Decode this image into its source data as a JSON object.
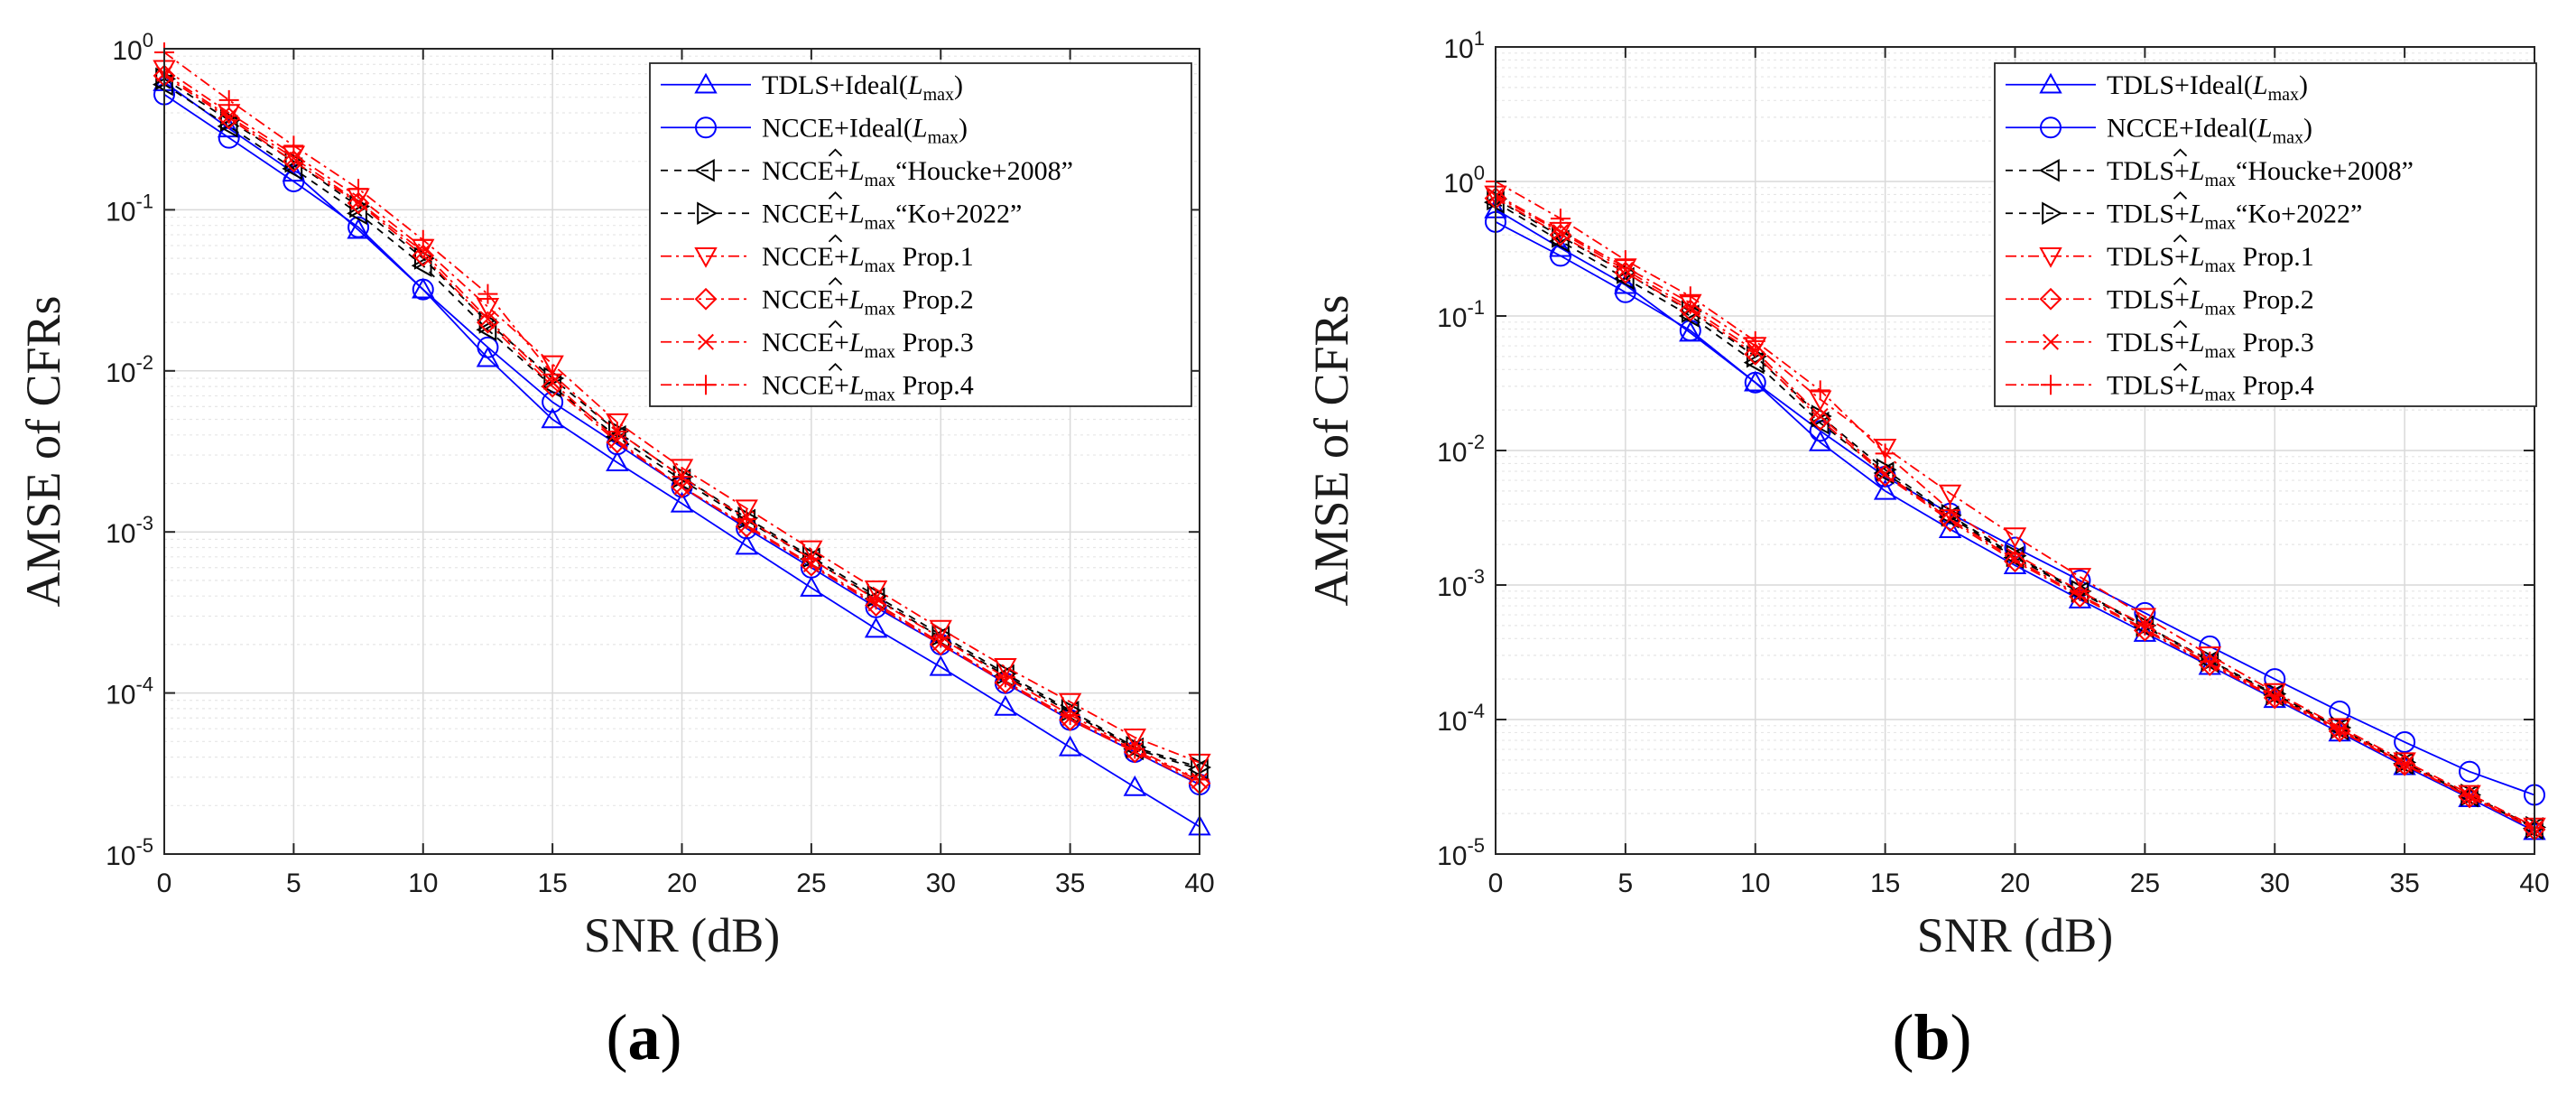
{
  "chart_data": [
    {
      "type": "line",
      "panel_label": "a",
      "title": "",
      "xlabel": "SNR (dB)",
      "ylabel": "AMSE of CFRs",
      "yscale": "log",
      "xlim": [
        0,
        40
      ],
      "ylim": [
        1e-05,
        1
      ],
      "grid": true,
      "minor_grid": true,
      "legend_position": "top-right",
      "x_ticks": [
        0,
        5,
        10,
        15,
        20,
        25,
        30,
        35,
        40
      ],
      "y_ticks": [
        0,
        -1,
        -2,
        -3,
        -4,
        -5
      ],
      "y_tick_labels": [
        "10",
        "10",
        "10",
        "10",
        "10",
        "10"
      ],
      "y_tick_exponents": [
        "0",
        "-1",
        "-2",
        "-3",
        "-4",
        "-5"
      ],
      "x": [
        0,
        2.5,
        5,
        7.5,
        10,
        12.5,
        15,
        17.5,
        20,
        22.5,
        25,
        27.5,
        30,
        32.5,
        35,
        37.5,
        40
      ],
      "series": [
        {
          "name_prefix": "TDLS+Ideal(",
          "name_math": "L",
          "name_sub": "max",
          "name_suffix": ")",
          "hat": false,
          "color": "#0000ff",
          "dash": "solid",
          "marker": "triangle-up",
          "values": [
            0.62,
            0.32,
            0.17,
            0.075,
            0.032,
            0.012,
            0.005,
            0.0027,
            0.0015,
            0.00082,
            0.00045,
            0.00025,
            0.000145,
            8.2e-05,
            4.6e-05,
            2.6e-05,
            1.48e-05
          ]
        },
        {
          "name_prefix": "NCCE+Ideal(",
          "name_math": "L",
          "name_sub": "max",
          "name_suffix": ")",
          "hat": false,
          "color": "#0000ff",
          "dash": "solid",
          "marker": "circle",
          "values": [
            0.52,
            0.28,
            0.15,
            0.078,
            0.032,
            0.014,
            0.0064,
            0.0035,
            0.0019,
            0.00105,
            0.0006,
            0.00034,
            0.0002,
            0.000115,
            6.8e-05,
            4.3e-05,
            2.7e-05
          ]
        },
        {
          "name_prefix": "NCCE+",
          "name_math": "L",
          "name_sub": "max",
          "name_suffix": "“Houcke+2008”",
          "hat": true,
          "color": "#000000",
          "dash": "8,7",
          "marker": "triangle-left",
          "values": [
            0.6,
            0.33,
            0.18,
            0.095,
            0.045,
            0.018,
            0.008,
            0.0039,
            0.0021,
            0.00118,
            0.00068,
            0.000385,
            0.000222,
            0.000128,
            7.6e-05,
            4.5e-05,
            3.35e-05
          ]
        },
        {
          "name_prefix": "NCCE+",
          "name_math": "L",
          "name_sub": "max",
          "name_suffix": "“Ko+2022”",
          "hat": true,
          "color": "#000000",
          "dash": "8,7",
          "marker": "triangle-right",
          "values": [
            0.65,
            0.36,
            0.2,
            0.105,
            0.05,
            0.02,
            0.009,
            0.0042,
            0.0022,
            0.00122,
            0.0007,
            0.0004,
            0.00023,
            0.000132,
            7.8e-05,
            4.6e-05,
            3.45e-05
          ]
        },
        {
          "name_prefix": "NCCE+",
          "name_math": "L",
          "name_sub": "max",
          "name_suffix": " Prop.1",
          "hat": true,
          "color": "#ff0000",
          "dash": "12,5,3,5",
          "marker": "triangle-down",
          "values": [
            0.75,
            0.4,
            0.22,
            0.12,
            0.058,
            0.025,
            0.011,
            0.0048,
            0.0025,
            0.0014,
            0.00078,
            0.00044,
            0.00025,
            0.000145,
            8.8e-05,
            5.3e-05,
            3.7e-05
          ]
        },
        {
          "name_prefix": "NCCE+",
          "name_math": "L",
          "name_sub": "max",
          "name_suffix": " Prop.2",
          "hat": true,
          "color": "#ff0000",
          "dash": "12,5,3,5",
          "marker": "diamond",
          "values": [
            0.68,
            0.37,
            0.2,
            0.11,
            0.052,
            0.02,
            0.008,
            0.0036,
            0.0019,
            0.00108,
            0.00062,
            0.00035,
            0.0002,
            0.000116,
            6.8e-05,
            4.3e-05,
            2.75e-05
          ]
        },
        {
          "name_prefix": "NCCE+",
          "name_math": "L",
          "name_sub": "max",
          "name_suffix": " Prop.3",
          "hat": true,
          "color": "#ff0000",
          "dash": "12,5,3,5",
          "marker": "x",
          "values": [
            0.7,
            0.38,
            0.21,
            0.112,
            0.055,
            0.021,
            0.0085,
            0.0037,
            0.0019,
            0.0011,
            0.00063,
            0.00036,
            0.000205,
            0.000118,
            7e-05,
            4.4e-05,
            2.85e-05
          ]
        },
        {
          "name_prefix": "NCCE+",
          "name_math": "L",
          "name_sub": "max",
          "name_suffix": " Prop.4",
          "hat": true,
          "color": "#ff0000",
          "dash": "12,5,3,5",
          "marker": "plus",
          "values": [
            0.95,
            0.48,
            0.25,
            0.135,
            0.065,
            0.03,
            0.0095,
            0.0042,
            0.0022,
            0.0012,
            0.00068,
            0.00038,
            0.00022,
            0.000125,
            7.3e-05,
            4.5e-05,
            2.9e-05
          ]
        }
      ]
    },
    {
      "type": "line",
      "panel_label": "b",
      "title": "",
      "xlabel": "SNR (dB)",
      "ylabel": "AMSE of CFRs",
      "yscale": "log",
      "xlim": [
        0,
        40
      ],
      "ylim": [
        1e-05,
        10
      ],
      "grid": true,
      "minor_grid": true,
      "legend_position": "top-right",
      "x_ticks": [
        0,
        5,
        10,
        15,
        20,
        25,
        30,
        35,
        40
      ],
      "y_ticks": [
        1,
        0,
        -1,
        -2,
        -3,
        -4,
        -5
      ],
      "y_tick_labels": [
        "10",
        "10",
        "10",
        "10",
        "10",
        "10",
        "10"
      ],
      "y_tick_exponents": [
        "1",
        "0",
        "-1",
        "-2",
        "-3",
        "-4",
        "-5"
      ],
      "x": [
        0,
        2.5,
        5,
        7.5,
        10,
        12.5,
        15,
        17.5,
        20,
        22.5,
        25,
        27.5,
        30,
        32.5,
        35,
        37.5,
        40
      ],
      "series": [
        {
          "name_prefix": "TDLS+Ideal(",
          "name_math": "L",
          "name_sub": "max",
          "name_suffix": ")",
          "hat": false,
          "color": "#0000ff",
          "dash": "solid",
          "marker": "triangle-up",
          "values": [
            0.62,
            0.32,
            0.17,
            0.075,
            0.032,
            0.0115,
            0.005,
            0.0026,
            0.0014,
            0.00078,
            0.00044,
            0.00025,
            0.000142,
            8e-05,
            4.5e-05,
            2.6e-05,
            1.48e-05
          ]
        },
        {
          "name_prefix": "NCCE+Ideal(",
          "name_math": "L",
          "name_sub": "max",
          "name_suffix": ")",
          "hat": false,
          "color": "#0000ff",
          "dash": "solid",
          "marker": "circle",
          "values": [
            0.5,
            0.28,
            0.15,
            0.078,
            0.032,
            0.014,
            0.0064,
            0.0034,
            0.0019,
            0.00108,
            0.00062,
            0.00035,
            0.0002,
            0.000115,
            6.8e-05,
            4.1e-05,
            2.75e-05
          ]
        },
        {
          "name_prefix": "TDLS+",
          "name_math": "L",
          "name_sub": "max",
          "name_suffix": "“Houcke+2008”",
          "hat": true,
          "color": "#000000",
          "dash": "8,7",
          "marker": "triangle-left",
          "values": [
            0.7,
            0.36,
            0.19,
            0.1,
            0.045,
            0.016,
            0.0068,
            0.0032,
            0.0016,
            0.00088,
            0.00049,
            0.00027,
            0.000152,
            8.5e-05,
            4.7e-05,
            2.7e-05,
            1.55e-05
          ]
        },
        {
          "name_prefix": "TDLS+",
          "name_math": "L",
          "name_sub": "max",
          "name_suffix": "“Ko+2022”",
          "hat": true,
          "color": "#000000",
          "dash": "8,7",
          "marker": "triangle-right",
          "values": [
            0.74,
            0.39,
            0.21,
            0.108,
            0.05,
            0.018,
            0.0072,
            0.0033,
            0.00165,
            0.0009,
            0.0005,
            0.000275,
            0.000155,
            8.7e-05,
            4.8e-05,
            2.75e-05,
            1.58e-05
          ]
        },
        {
          "name_prefix": "TDLS+",
          "name_math": "L",
          "name_sub": "max",
          "name_suffix": " Prop.1",
          "hat": true,
          "color": "#ff0000",
          "dash": "12,5,3,5",
          "marker": "triangle-down",
          "values": [
            0.8,
            0.43,
            0.23,
            0.125,
            0.06,
            0.024,
            0.0105,
            0.0048,
            0.0023,
            0.00115,
            0.00058,
            0.0003,
            0.00016,
            8.8e-05,
            4.9e-05,
            2.8e-05,
            1.6e-05
          ]
        },
        {
          "name_prefix": "TDLS+",
          "name_math": "L",
          "name_sub": "max",
          "name_suffix": " Prop.2",
          "hat": true,
          "color": "#ff0000",
          "dash": "12,5,3,5",
          "marker": "diamond",
          "values": [
            0.75,
            0.4,
            0.21,
            0.11,
            0.052,
            0.017,
            0.0065,
            0.003,
            0.0015,
            0.00082,
            0.00046,
            0.000255,
            0.000145,
            8.2e-05,
            4.6e-05,
            2.65e-05,
            1.52e-05
          ]
        },
        {
          "name_prefix": "TDLS+",
          "name_math": "L",
          "name_sub": "max",
          "name_suffix": " Prop.3",
          "hat": true,
          "color": "#ff0000",
          "dash": "12,5,3,5",
          "marker": "x",
          "values": [
            0.78,
            0.42,
            0.22,
            0.115,
            0.055,
            0.018,
            0.0067,
            0.0031,
            0.00155,
            0.00084,
            0.00047,
            0.00026,
            0.000147,
            8.3e-05,
            4.65e-05,
            2.68e-05,
            1.54e-05
          ]
        },
        {
          "name_prefix": "TDLS+",
          "name_math": "L",
          "name_sub": "max",
          "name_suffix": " Prop.4",
          "hat": true,
          "color": "#ff0000",
          "dash": "12,5,3,5",
          "marker": "plus",
          "values": [
            1.0,
            0.53,
            0.26,
            0.14,
            0.065,
            0.028,
            0.0095,
            0.0036,
            0.0017,
            0.0009,
            0.0005,
            0.00027,
            0.00015,
            8.5e-05,
            4.7e-05,
            2.7e-05,
            1.56e-05
          ]
        }
      ]
    }
  ]
}
